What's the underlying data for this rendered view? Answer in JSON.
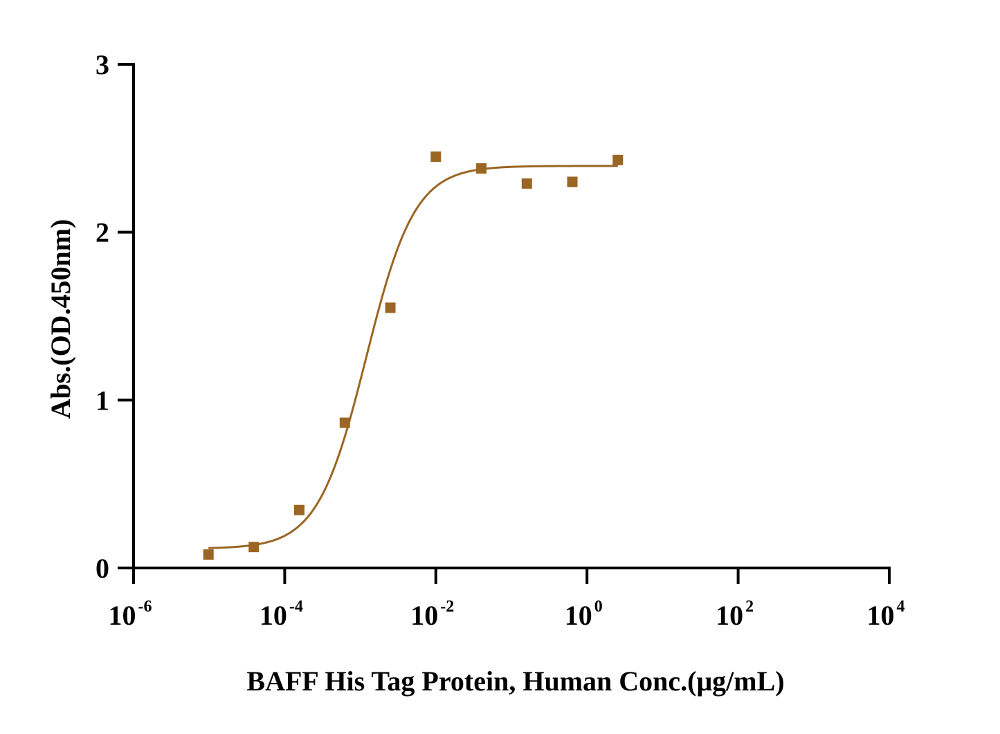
{
  "chart_data": {
    "type": "scatter",
    "xlabel": "BAFF His Tag Protein, Human Conc.(μg/mL)",
    "ylabel": "Abs.(OD.450nm)",
    "x_scale": "log10",
    "xlim": [
      1e-06,
      10000
    ],
    "ylim": [
      0,
      3
    ],
    "x_ticks": [
      {
        "base": "10",
        "exp": "-6",
        "value": 1e-06
      },
      {
        "base": "10",
        "exp": "-4",
        "value": 0.0001
      },
      {
        "base": "10",
        "exp": "-2",
        "value": 0.01
      },
      {
        "base": "10",
        "exp": "0",
        "value": 1
      },
      {
        "base": "10",
        "exp": "2",
        "value": 100
      },
      {
        "base": "10",
        "exp": "4",
        "value": 10000
      }
    ],
    "y_ticks": [
      {
        "label": "0",
        "value": 0
      },
      {
        "label": "1",
        "value": 1
      },
      {
        "label": "2",
        "value": 2
      },
      {
        "label": "3",
        "value": 3
      }
    ],
    "grid": false,
    "color": "#9B6523",
    "points": {
      "x": [
        9.8e-06,
        3.9e-05,
        0.000156,
        0.000625,
        0.0025,
        0.01,
        0.04,
        0.16,
        0.64,
        2.56
      ],
      "y": [
        0.08,
        0.125,
        0.345,
        0.865,
        1.55,
        2.45,
        2.38,
        2.29,
        2.3,
        2.43
      ]
    },
    "fit_curve": {
      "model": "4PL",
      "bottom": 0.115,
      "top": 2.395,
      "ec50": 0.0012,
      "hill": 1.35,
      "x_range": [
        9.8e-06,
        2.56
      ]
    }
  }
}
